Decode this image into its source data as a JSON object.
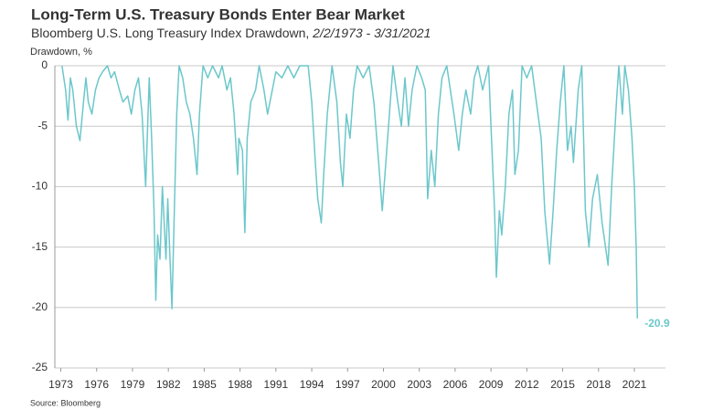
{
  "chart_data": {
    "type": "line",
    "title": "Long-Term U.S. Treasury Bonds Enter Bear Market",
    "subtitle": "Bloomberg U.S. Long Treasury Index Drawdown, ",
    "subtitle_dates": "2/2/1973 - 3/31/2021",
    "y_label": "Drawdown, %",
    "source": "Source: Bloomberg",
    "color": "#6cc7cb",
    "xlim": [
      1972.5,
      2023.6
    ],
    "xticks": [
      1973,
      1976,
      1979,
      1982,
      1985,
      1988,
      1991,
      1994,
      1997,
      2000,
      2003,
      2006,
      2009,
      2012,
      2015,
      2018,
      2021
    ],
    "ylim": [
      -25,
      0
    ],
    "yticks": [
      -25,
      -20,
      -15,
      -10,
      -5,
      0
    ],
    "grid": true,
    "annotation": -20.9,
    "x": [
      1973.1,
      1973.4,
      1973.6,
      1973.8,
      1974.0,
      1974.3,
      1974.6,
      1974.9,
      1975.1,
      1975.3,
      1975.6,
      1975.9,
      1976.2,
      1976.5,
      1976.9,
      1977.2,
      1977.5,
      1977.9,
      1978.2,
      1978.6,
      1978.9,
      1979.2,
      1979.5,
      1979.8,
      1980.1,
      1980.2,
      1980.4,
      1980.6,
      1980.8,
      1980.95,
      1981.1,
      1981.3,
      1981.5,
      1981.6,
      1981.8,
      1981.95,
      1982.1,
      1982.3,
      1982.5,
      1982.7,
      1982.9,
      1983.2,
      1983.5,
      1983.8,
      1984.1,
      1984.4,
      1984.6,
      1984.9,
      1985.3,
      1985.7,
      1986.2,
      1986.5,
      1986.9,
      1987.2,
      1987.5,
      1987.8,
      1987.9,
      1988.2,
      1988.4,
      1988.6,
      1988.9,
      1989.3,
      1989.6,
      1990.0,
      1990.3,
      1990.7,
      1991.0,
      1991.5,
      1992.0,
      1992.5,
      1993.0,
      1993.7,
      1994.0,
      1994.3,
      1994.5,
      1994.8,
      1995.0,
      1995.3,
      1995.7,
      1996.1,
      1996.4,
      1996.6,
      1996.9,
      1997.2,
      1997.5,
      1997.8,
      1998.3,
      1998.8,
      1999.2,
      1999.6,
      1999.9,
      2000.2,
      2000.5,
      2000.8,
      2001.2,
      2001.5,
      2001.8,
      2002.1,
      2002.4,
      2002.8,
      2003.2,
      2003.5,
      2003.7,
      2004.0,
      2004.3,
      2004.6,
      2004.9,
      2005.3,
      2005.6,
      2005.9,
      2006.3,
      2006.6,
      2006.9,
      2007.3,
      2007.6,
      2007.9,
      2008.3,
      2008.8,
      2009.0,
      2009.3,
      2009.45,
      2009.7,
      2009.9,
      2010.2,
      2010.5,
      2010.8,
      2011.0,
      2011.3,
      2011.6,
      2012.0,
      2012.4,
      2012.8,
      2013.2,
      2013.5,
      2013.9,
      2014.2,
      2014.5,
      2014.8,
      2015.1,
      2015.4,
      2015.7,
      2015.9,
      2016.3,
      2016.6,
      2016.9,
      2017.2,
      2017.5,
      2017.9,
      2018.3,
      2018.8,
      2019.1,
      2019.5,
      2019.7,
      2020.0,
      2020.2,
      2020.5,
      2020.8,
      2021.0,
      2021.15,
      2021.25
    ],
    "values": [
      0,
      -2,
      -4.5,
      -1,
      -2,
      -5,
      -6.2,
      -3,
      -1,
      -3,
      -4,
      -2,
      -1,
      -0.5,
      0,
      -1,
      -0.5,
      -2,
      -3,
      -2.5,
      -4,
      -2,
      -1,
      -4,
      -10,
      -7,
      -1,
      -6,
      -12,
      -19.4,
      -14,
      -16,
      -10,
      -12,
      -16,
      -11,
      -15,
      -20.1,
      -12,
      -4,
      0,
      -1,
      -3,
      -4,
      -6,
      -9,
      -4,
      0,
      -1,
      0,
      -1,
      0,
      -2,
      -1,
      -4,
      -9,
      -6,
      -7,
      -13.8,
      -6,
      -3,
      -2,
      0,
      -2,
      -4,
      -2,
      -0.5,
      -1,
      0,
      -1,
      0,
      0,
      -3,
      -8,
      -11,
      -13,
      -9,
      -4,
      0,
      -3,
      -8,
      -10,
      -4,
      -6,
      -2,
      0,
      -1,
      0,
      -3,
      -8,
      -12,
      -8,
      -4,
      0,
      -3,
      -5,
      -1,
      -5,
      -2,
      0,
      -1,
      -2,
      -11,
      -7,
      -10,
      -4,
      -1,
      0,
      -2,
      -4,
      -7,
      -4,
      -2,
      -4,
      -1,
      0,
      -2,
      0,
      -5,
      -12,
      -17.5,
      -12,
      -14,
      -10,
      -4,
      -2,
      -9,
      -7,
      0,
      -1,
      0,
      -3,
      -6,
      -12,
      -16.4,
      -12,
      -7,
      -3,
      0,
      -7,
      -5,
      -8,
      -2,
      0,
      -12,
      -15,
      -11,
      -9,
      -13,
      -16.5,
      -10,
      -3,
      0,
      -4,
      0,
      -2,
      -6,
      -10,
      -15,
      -20.9
    ]
  }
}
